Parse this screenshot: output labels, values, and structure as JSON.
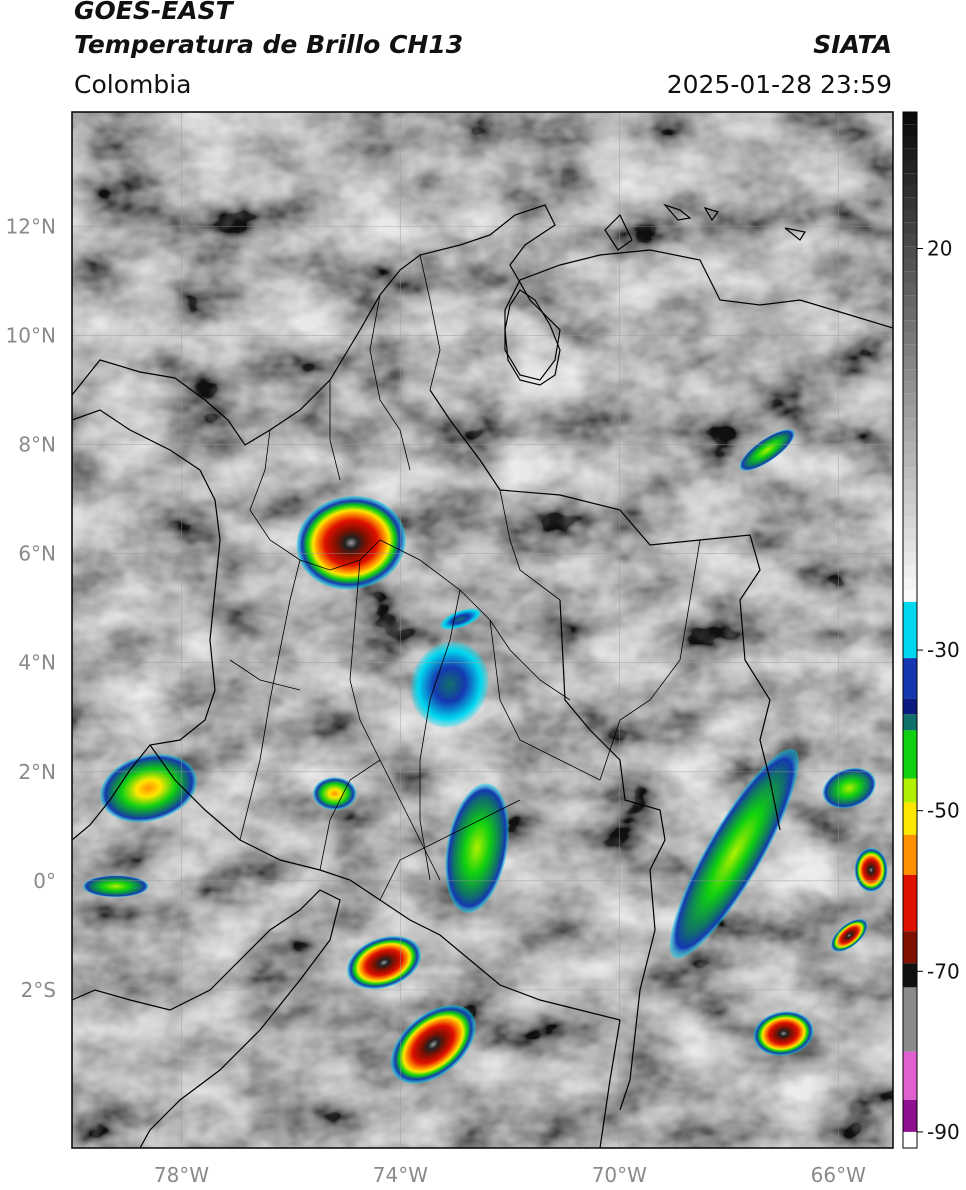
{
  "header": {
    "satellite": "GOES-EAST",
    "product": "Temperatura de Brillo CH13",
    "region": "Colombia",
    "organization": "SIATA",
    "timestamp": "2025-01-28 23:59"
  },
  "map": {
    "projection": "PlateCarree",
    "lon_range": [
      -80,
      -65
    ],
    "lat_range": [
      -4.9,
      14.1
    ],
    "lat_ticks": [
      {
        "value": 12,
        "label": "12°N"
      },
      {
        "value": 10,
        "label": "10°N"
      },
      {
        "value": 8,
        "label": "8°N"
      },
      {
        "value": 6,
        "label": "6°N"
      },
      {
        "value": 4,
        "label": "4°N"
      },
      {
        "value": 2,
        "label": "2°N"
      },
      {
        "value": 0,
        "label": "0°"
      },
      {
        "value": -2,
        "label": "2°S"
      }
    ],
    "lon_ticks": [
      {
        "value": -78,
        "label": "78°W"
      },
      {
        "value": -74,
        "label": "74°W"
      },
      {
        "value": -70,
        "label": "70°W"
      },
      {
        "value": -66,
        "label": "66°W"
      }
    ],
    "grid": true,
    "storms": [
      {
        "lon": -74.9,
        "lat": 6.2,
        "rx": 1.0,
        "ry": 0.85,
        "rot": -10,
        "core": "red"
      },
      {
        "lon": -73.4,
        "lat": -3.0,
        "rx": 0.9,
        "ry": 0.55,
        "rot": -40,
        "core": "red"
      },
      {
        "lon": -74.3,
        "lat": -1.5,
        "rx": 0.7,
        "ry": 0.45,
        "rot": -20,
        "core": "red"
      },
      {
        "lon": -78.6,
        "lat": 1.7,
        "rx": 0.9,
        "ry": 0.6,
        "rot": -15,
        "core": "orange"
      },
      {
        "lon": -75.2,
        "lat": 1.6,
        "rx": 0.4,
        "ry": 0.3,
        "rot": 0,
        "core": "yellow"
      },
      {
        "lon": -67.0,
        "lat": -2.8,
        "rx": 0.55,
        "ry": 0.4,
        "rot": -10,
        "core": "red"
      },
      {
        "lon": -65.8,
        "lat": -1.0,
        "rx": 0.4,
        "ry": 0.2,
        "rot": -40,
        "core": "red"
      },
      {
        "lon": -65.4,
        "lat": 0.2,
        "rx": 0.3,
        "ry": 0.4,
        "rot": 0,
        "core": "red"
      },
      {
        "lon": -65.8,
        "lat": 1.7,
        "rx": 0.5,
        "ry": 0.35,
        "rot": -20,
        "core": "green"
      },
      {
        "lon": -67.9,
        "lat": 0.5,
        "rx": 0.5,
        "ry": 2.2,
        "rot": 30,
        "core": "green"
      },
      {
        "lon": -72.6,
        "lat": 0.6,
        "rx": 0.55,
        "ry": 1.2,
        "rot": 10,
        "core": "green"
      },
      {
        "lon": -73.1,
        "lat": 3.6,
        "rx": 0.7,
        "ry": 0.8,
        "rot": 20,
        "core": "blue"
      },
      {
        "lon": -72.9,
        "lat": 4.8,
        "rx": 0.4,
        "ry": 0.15,
        "rot": -20,
        "core": "blue"
      },
      {
        "lon": -67.3,
        "lat": 7.9,
        "rx": 0.6,
        "ry": 0.2,
        "rot": -35,
        "core": "green"
      },
      {
        "lon": -79.2,
        "lat": -0.1,
        "rx": 0.6,
        "ry": 0.2,
        "rot": 0,
        "core": "green"
      }
    ]
  },
  "colorbar": {
    "ticks": [
      {
        "value": 20,
        "label": "20"
      },
      {
        "value": -30,
        "label": "-30"
      },
      {
        "value": -50,
        "label": "-50"
      },
      {
        "value": -70,
        "label": "-70"
      },
      {
        "value": -90,
        "label": "-90"
      }
    ],
    "range": [
      -92,
      37
    ],
    "colors": {
      "gray_top": "#0a0a0a",
      "gray_bottom": "#fafafa",
      "cyan": "#00d8f0",
      "blue": "#1538b0",
      "navy": "#0a1a80",
      "teal": "#10706a",
      "green": "#10d010",
      "lime": "#b0f000",
      "yellow": "#ffe800",
      "orange": "#ff9000",
      "red": "#e01000",
      "darkred": "#801000",
      "black": "#101010",
      "magenta": "#e060d0",
      "purple": "#901090"
    }
  }
}
